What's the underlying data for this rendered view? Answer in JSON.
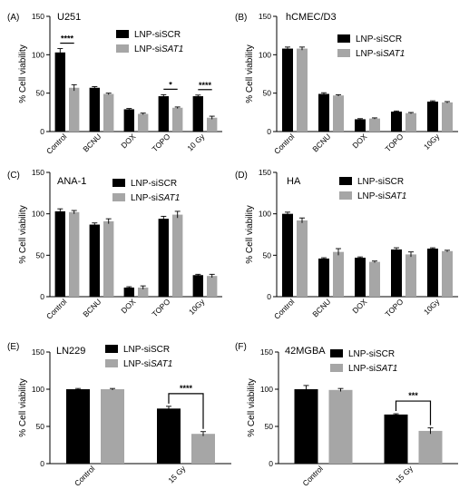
{
  "legend_names": [
    "LNP-siSCR",
    "LNP-si"
  ],
  "colors": [
    "#000000",
    "#a6a6a6"
  ],
  "chart_data": [
    {
      "type": "bar",
      "panel": "(A)",
      "title": "U251",
      "ylabel": "% Cell viability",
      "ylim": [
        0,
        150
      ],
      "yticks": [
        0,
        50,
        100,
        150
      ],
      "categories": [
        "Control",
        "BCNU",
        "DOX",
        "TOPO",
        "10 Gy"
      ],
      "series": [
        {
          "name": "LNP-siSCR",
          "values": [
            103,
            57,
            29,
            46,
            46
          ],
          "errors": [
            5,
            1.5,
            1,
            2,
            1.5
          ]
        },
        {
          "name": "LNP-siSAT1",
          "values": [
            57,
            49,
            23,
            31,
            18
          ],
          "errors": [
            4,
            1,
            1,
            1,
            2
          ]
        }
      ],
      "significance": [
        {
          "category": 0,
          "label": "****"
        },
        {
          "category": 3,
          "label": "*"
        },
        {
          "category": 4,
          "label": "****"
        }
      ],
      "legend_position": "top-right"
    },
    {
      "type": "bar",
      "panel": "(B)",
      "title": "hCMEC/D3",
      "ylabel": "% Cell viability",
      "ylim": [
        0,
        150
      ],
      "yticks": [
        0,
        50,
        100,
        150
      ],
      "categories": [
        "Control",
        "BCNU",
        "DOX",
        "TOPO",
        "10Gy"
      ],
      "series": [
        {
          "name": "LNP-siSCR",
          "values": [
            108,
            49,
            16,
            26,
            39
          ],
          "errors": [
            2,
            1.5,
            0.8,
            0.8,
            1
          ]
        },
        {
          "name": "LNP-siSAT1",
          "values": [
            108,
            47,
            17,
            24,
            38
          ],
          "errors": [
            2,
            1,
            0.8,
            0.8,
            1
          ]
        }
      ],
      "legend_position": "top-right"
    },
    {
      "type": "bar",
      "panel": "(C)",
      "title": "ANA-1",
      "ylabel": "% Cell viability",
      "ylim": [
        0,
        150
      ],
      "yticks": [
        0,
        50,
        100,
        150
      ],
      "categories": [
        "Control",
        "BCNU",
        "DOX",
        "TOPO",
        "10Gy"
      ],
      "series": [
        {
          "name": "LNP-siSCR",
          "values": [
            103,
            87,
            11,
            94,
            26
          ],
          "errors": [
            3,
            2,
            1,
            3,
            1
          ]
        },
        {
          "name": "LNP-siSAT1",
          "values": [
            102,
            91,
            11,
            99,
            25
          ],
          "errors": [
            2,
            3,
            2,
            4,
            2
          ]
        }
      ],
      "legend_position": "top-right"
    },
    {
      "type": "bar",
      "panel": "(D)",
      "title": "HA",
      "ylabel": "% Cell viability",
      "ylim": [
        0,
        150
      ],
      "yticks": [
        0,
        50,
        100,
        150
      ],
      "categories": [
        "Control",
        "BCNU",
        "DOX",
        "TOPO",
        "10Gy"
      ],
      "series": [
        {
          "name": "LNP-siSCR",
          "values": [
            100,
            46,
            47,
            57,
            58
          ],
          "errors": [
            2,
            1,
            1,
            2,
            1
          ]
        },
        {
          "name": "LNP-siSAT1",
          "values": [
            92,
            54,
            42,
            51,
            55
          ],
          "errors": [
            3,
            4,
            1,
            3,
            1
          ]
        }
      ],
      "legend_position": "top-right"
    },
    {
      "type": "bar",
      "panel": "(E)",
      "title": "LN229",
      "ylabel": "% Cell viability",
      "ylim": [
        0,
        150
      ],
      "yticks": [
        0,
        50,
        100,
        150
      ],
      "categories": [
        "Control",
        "15 Gy"
      ],
      "series": [
        {
          "name": "LNP-siSCR",
          "values": [
            100,
            74
          ],
          "errors": [
            1,
            3
          ]
        },
        {
          "name": "LNP-siSAT1",
          "values": [
            100,
            40
          ],
          "errors": [
            1,
            3
          ]
        }
      ],
      "significance": [
        {
          "category": 1,
          "label": "****"
        }
      ],
      "legend_position": "top-right"
    },
    {
      "type": "bar",
      "panel": "(F)",
      "title": "42MGBA",
      "ylabel": "% Cell viability",
      "ylim": [
        0,
        150
      ],
      "yticks": [
        0,
        50,
        100,
        150
      ],
      "categories": [
        "Control",
        "15 Gy"
      ],
      "series": [
        {
          "name": "LNP-siSCR",
          "values": [
            100,
            66
          ],
          "errors": [
            5,
            1
          ]
        },
        {
          "name": "LNP-siSAT1",
          "values": [
            99,
            44
          ],
          "errors": [
            2,
            4
          ]
        }
      ],
      "significance": [
        {
          "category": 1,
          "label": "***"
        }
      ],
      "legend_position": "top-right"
    }
  ]
}
